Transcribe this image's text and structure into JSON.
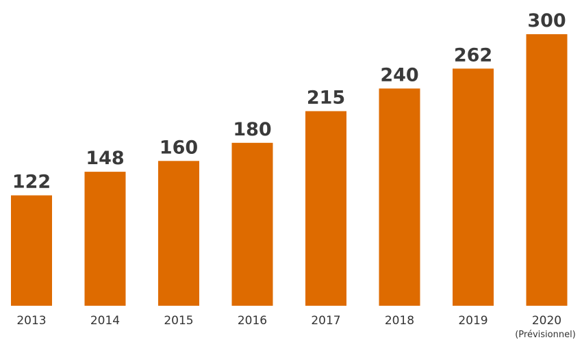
{
  "chart_data": {
    "type": "bar",
    "categories": [
      "2013",
      "2014",
      "2015",
      "2016",
      "2017",
      "2018",
      "2019",
      "2020"
    ],
    "category_notes": [
      "",
      "",
      "",
      "",
      "",
      "",
      "",
      "(Prévisionnel)"
    ],
    "values": [
      122,
      148,
      160,
      180,
      215,
      240,
      262,
      300
    ],
    "value_labels": [
      "122",
      "148",
      "160",
      "180",
      "215",
      "240",
      "262",
      "300"
    ],
    "ylim": [
      0,
      300
    ],
    "grid": false,
    "legend": "none",
    "bar_color": "#de6b00",
    "label_color": "#3a3a3a"
  }
}
